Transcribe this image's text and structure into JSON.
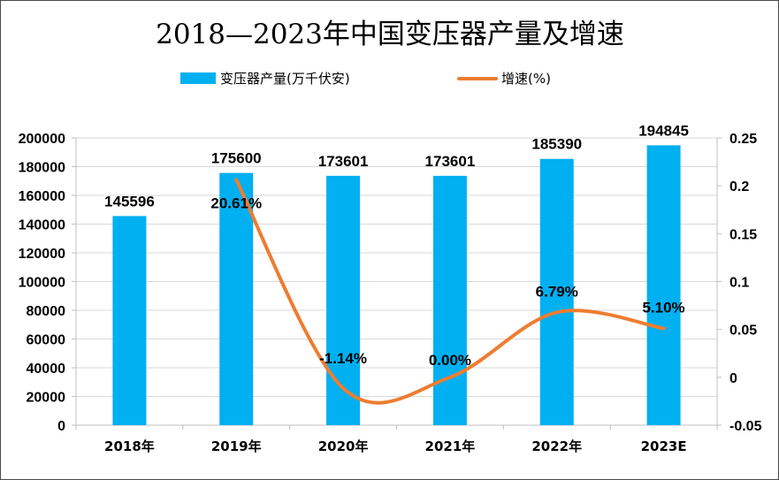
{
  "chart_data": {
    "type": "bar+line",
    "title": "2018—2023年中国变压器产量及增速",
    "categories": [
      "2018年",
      "2019年",
      "2020年",
      "2021年",
      "2022年",
      "2023E"
    ],
    "series": [
      {
        "name": "变压器产量(万千伏安)",
        "kind": "bar",
        "axis": "left",
        "color": "#00b0f0",
        "values": [
          145596,
          175600,
          173601,
          173601,
          185390,
          194845
        ],
        "labels": [
          "145596",
          "175600",
          "173601",
          "173601",
          "185390",
          "194845"
        ]
      },
      {
        "name": "增速(%)",
        "kind": "line",
        "axis": "right",
        "color": "#ed7d31",
        "values": [
          null,
          0.2061,
          -0.0114,
          0.0,
          0.0679,
          0.051
        ],
        "labels": [
          "",
          "20.61%",
          "-1.14%",
          "0.00%",
          "6.79%",
          "5.10%"
        ]
      }
    ],
    "y_left": {
      "range": [
        0,
        200000
      ],
      "ticks": [
        "0",
        "20000",
        "40000",
        "60000",
        "80000",
        "100000",
        "120000",
        "140000",
        "160000",
        "180000",
        "200000"
      ]
    },
    "y_right": {
      "range": [
        -0.05,
        0.25
      ],
      "ticks": [
        "-0.05",
        "0",
        "0.05",
        "0.1",
        "0.15",
        "0.2",
        "0.25"
      ]
    },
    "grid": true,
    "legend_position": "top"
  }
}
